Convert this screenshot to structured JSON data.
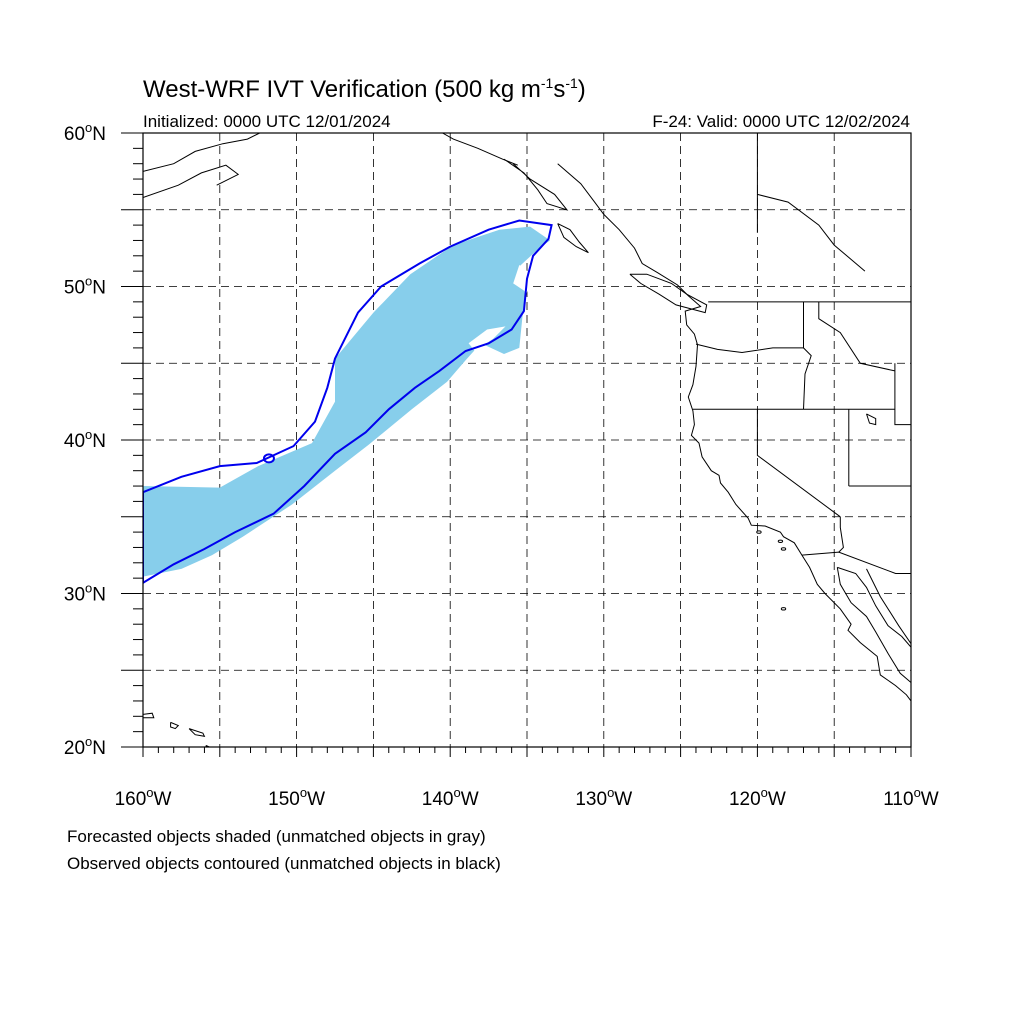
{
  "title": "West-WRF IVT Verification (500 kg m",
  "title_unit_exp1": "-1",
  "title_s": "s",
  "title_unit_exp2": "-1",
  "title_close": ")",
  "initialized": "Initialized: 0000 UTC 12/01/2024",
  "valid": "F-24: Valid: 0000 UTC 12/02/2024",
  "map": {
    "lon_range": [
      -160,
      -110
    ],
    "lat_range": [
      20,
      60
    ],
    "projection": "cylindrical equidistant",
    "grid": "dashed every 5 degrees",
    "lat_labels": [
      {
        "lat": 60,
        "deg": "60",
        "hemi": "N"
      },
      {
        "lat": 50,
        "deg": "50",
        "hemi": "N"
      },
      {
        "lat": 40,
        "deg": "40",
        "hemi": "N"
      },
      {
        "lat": 30,
        "deg": "30",
        "hemi": "N"
      },
      {
        "lat": 20,
        "deg": "20",
        "hemi": "N"
      }
    ],
    "lon_labels": [
      {
        "lon": -160,
        "deg": "160",
        "hemi": "W"
      },
      {
        "lon": -150,
        "deg": "150",
        "hemi": "W"
      },
      {
        "lon": -140,
        "deg": "140",
        "hemi": "W"
      },
      {
        "lon": -130,
        "deg": "130",
        "hemi": "W"
      },
      {
        "lon": -120,
        "deg": "120",
        "hemi": "W"
      },
      {
        "lon": -110,
        "deg": "110",
        "hemi": "W"
      }
    ],
    "colors": {
      "forecast_fill": "#87ceeb",
      "observed_contour": "#0000ee",
      "coastline": "#000000",
      "grid": "#000000"
    }
  },
  "forecast_object": {
    "label": "Forecasted object (matched)",
    "outline_lonlat": [
      [
        -160,
        37
      ],
      [
        -155,
        36.9
      ],
      [
        -152.5,
        38.3
      ],
      [
        -149,
        39.8
      ],
      [
        -147.5,
        42.5
      ],
      [
        -147.5,
        45.3
      ],
      [
        -145,
        48.3
      ],
      [
        -142.6,
        50.8
      ],
      [
        -139.8,
        52.7
      ],
      [
        -136.8,
        53.7
      ],
      [
        -134.8,
        53.9
      ],
      [
        -133.5,
        53.0
      ],
      [
        -134.2,
        52.5
      ],
      [
        -135.5,
        51.3
      ],
      [
        -135.1,
        49.4
      ],
      [
        -135.3,
        48.0
      ],
      [
        -135.5,
        46.0
      ],
      [
        -136.5,
        45.6
      ],
      [
        -138.0,
        46.3
      ],
      [
        -139.0,
        45.2
      ],
      [
        -140.2,
        43.8
      ],
      [
        -142.5,
        42.0
      ],
      [
        -145.3,
        39.7
      ],
      [
        -147.5,
        38.0
      ],
      [
        -150.3,
        35.8
      ],
      [
        -153.5,
        33.7
      ],
      [
        -155.5,
        32.5
      ],
      [
        -157.5,
        31.6
      ],
      [
        -160,
        31.1
      ]
    ]
  },
  "observed_object": {
    "label": "Observed object (matched)",
    "outline_lonlat": [
      [
        -160,
        36.6
      ],
      [
        -157.5,
        37.6
      ],
      [
        -155,
        38.3
      ],
      [
        -152.6,
        38.5
      ],
      [
        -150.2,
        39.6
      ],
      [
        -148.8,
        41.2
      ],
      [
        -148.0,
        43.4
      ],
      [
        -147.5,
        45.3
      ],
      [
        -146.0,
        48.3
      ],
      [
        -144.5,
        50.0
      ],
      [
        -142.0,
        51.5
      ],
      [
        -140.0,
        52.6
      ],
      [
        -137.5,
        53.7
      ],
      [
        -135.5,
        54.3
      ],
      [
        -133.4,
        54.0
      ],
      [
        -133.6,
        53.1
      ],
      [
        -134.6,
        52.0
      ],
      [
        -135.0,
        50.5
      ],
      [
        -135.2,
        48.4
      ],
      [
        -136.0,
        47.2
      ],
      [
        -137.5,
        46.3
      ],
      [
        -139.0,
        45.8
      ],
      [
        -140.7,
        44.5
      ],
      [
        -142.3,
        43.4
      ],
      [
        -144.0,
        42.0
      ],
      [
        -145.5,
        40.5
      ],
      [
        -147.5,
        39.1
      ],
      [
        -149.5,
        37.0
      ],
      [
        -151.5,
        35.2
      ],
      [
        -154.0,
        34.0
      ],
      [
        -156.0,
        32.9
      ],
      [
        -158.0,
        31.9
      ],
      [
        -160,
        30.7
      ]
    ]
  },
  "legend_forecast": "Forecasted objects shaded (unmatched objects in gray)",
  "legend_observed": "Observed objects contoured (unmatched objects in black)"
}
